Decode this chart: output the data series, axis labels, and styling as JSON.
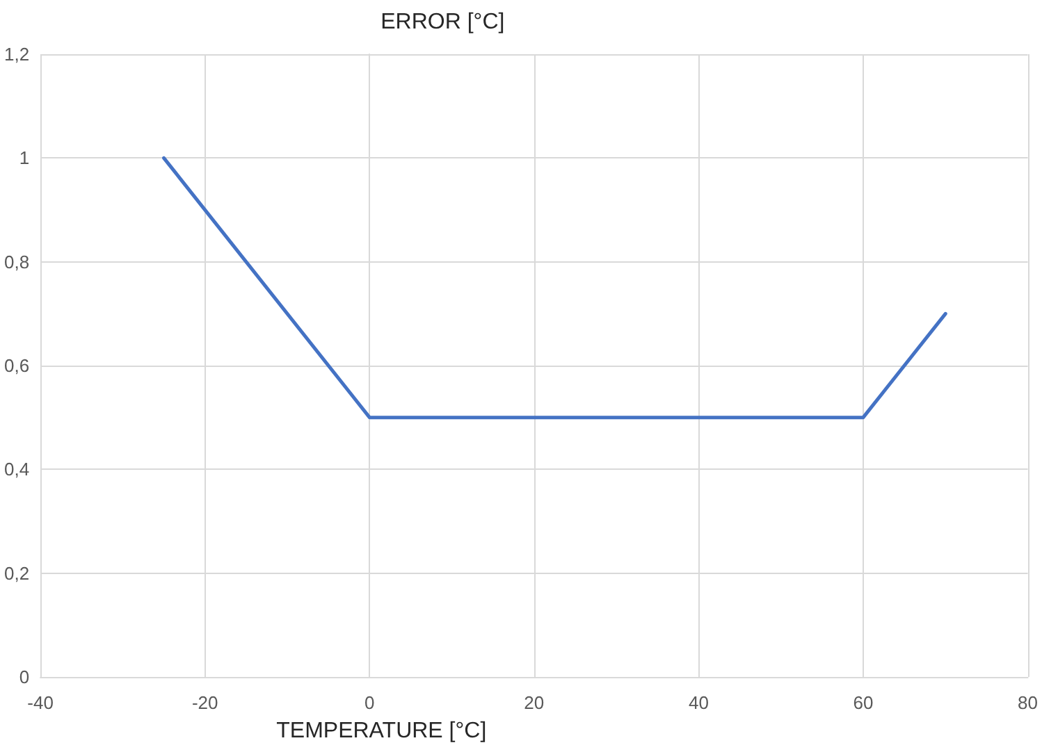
{
  "chart_data": {
    "type": "line",
    "xlabel": "TEMPERATURE [°C]",
    "ylabel": "ERROR [°C]",
    "x": [
      -25,
      0,
      60,
      70
    ],
    "series": [
      {
        "color": "#4472c4",
        "values": [
          1,
          0.5,
          0.5,
          0.7
        ]
      }
    ],
    "xlim": [
      -40,
      80
    ],
    "xticks": [
      -40,
      -20,
      0,
      20,
      40,
      60,
      80
    ],
    "ylim": [
      0,
      1.2
    ],
    "yticks": [
      0,
      {
        "value": 0.2,
        "label": "0,2"
      },
      {
        "value": 0.4,
        "label": "0,4"
      },
      {
        "value": 0.6,
        "label": "0,6"
      },
      {
        "value": 0.8,
        "label": "0,8"
      },
      1,
      {
        "value": 1.2,
        "label": "1,2"
      }
    ],
    "grid": true,
    "marker": "none",
    "line_style": "solid"
  }
}
